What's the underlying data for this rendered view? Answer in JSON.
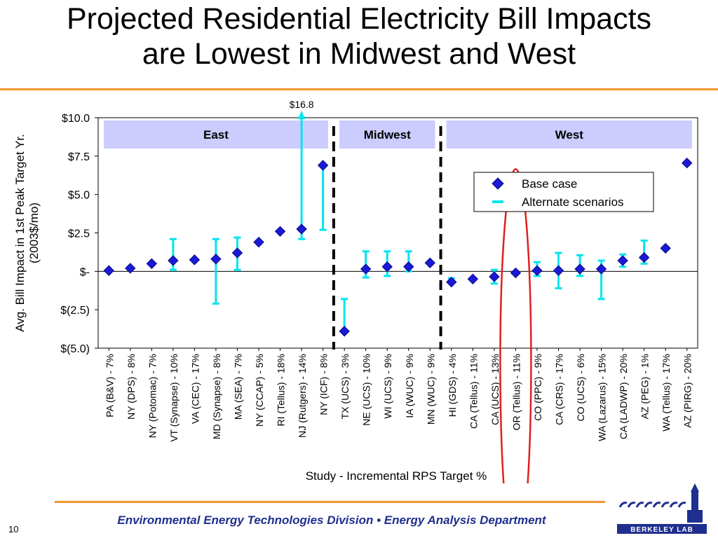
{
  "slide": {
    "title_line1": "Projected Residential Electricity Bill Impacts",
    "title_line2": "are Lowest in Midwest and West",
    "footer": "Environmental Energy Technologies Division  •  Energy Analysis Department",
    "page_number": "10",
    "logo_text": "BERKELEY LAB",
    "accent_color": "#f0962e",
    "footer_color": "#1f2f8f"
  },
  "chart_data": {
    "type": "scatter",
    "title": "",
    "xlabel": "Study - Incremental RPS Target %",
    "ylabel": "Avg. Bill Impact in 1st Peak Target Yr.\n(2003$/mo)",
    "ylim": [
      -5,
      10
    ],
    "yticks": [
      10,
      7.5,
      5,
      2.5,
      0,
      -2.5,
      -5
    ],
    "ytick_labels": [
      "$10.0",
      "$7.5",
      "$5.0",
      "$2.5",
      "$-",
      "$(2.5)",
      "$(5.0)"
    ],
    "categories": [
      "PA (B&V) - 7%",
      "NY (DPS) - 8%",
      "NY (Potomac) - 7%",
      "VT (Synapse) - 10%",
      "VA (CEC) - 17%",
      "MD (Synapse) - 8%",
      "MA (SEA) - 7%",
      "NY (CCAP) - 5%",
      "RI (Tellus) - 18%",
      "NJ (Rutgers) - 14%",
      "NY (ICF) - 8%",
      "TX (UCS) - 3%",
      "NE (UCS) - 10%",
      "WI (UCS) - 9%",
      "IA (WUC) - 9%",
      "MN (WUC) - 9%",
      "HI (GDS) - 4%",
      "CA (Tellus) - 11%",
      "CA (UCS) - 13%",
      "OR (Tellus) - 11%",
      "CO (PPC) - 9%",
      "CA (CRS) - 17%",
      "CO (UCS) - 6%",
      "WA (Lazarus) - 15%",
      "CA (LADWP) - 20%",
      "AZ (PEG) - 1%",
      "WA (Tellus) - 17%",
      "AZ (PIRG) - 20%"
    ],
    "series": [
      {
        "name": "Base case",
        "values": [
          0.05,
          0.2,
          0.5,
          0.7,
          0.75,
          0.8,
          1.2,
          1.9,
          2.6,
          2.75,
          6.9,
          -3.9,
          0.15,
          0.3,
          0.3,
          0.55,
          -0.7,
          -0.5,
          -0.35,
          -0.1,
          0.05,
          0.05,
          0.15,
          0.15,
          0.7,
          0.9,
          1.5,
          7.05
        ]
      },
      {
        "name": "Alternate scenarios",
        "ranges": [
          null,
          null,
          null,
          [
            0.1,
            2.1
          ],
          null,
          [
            -2.1,
            2.1
          ],
          [
            0.1,
            2.2
          ],
          null,
          null,
          [
            2.1,
            10.0
          ],
          [
            2.7,
            6.9
          ],
          [
            -3.9,
            -1.8
          ],
          [
            -0.4,
            1.3
          ],
          [
            -0.3,
            1.3
          ],
          [
            0.0,
            1.3
          ],
          null,
          [
            -0.7,
            -0.45
          ],
          null,
          [
            -0.8,
            0.1
          ],
          null,
          [
            -0.3,
            0.6
          ],
          [
            -1.1,
            1.2
          ],
          [
            -0.3,
            1.05
          ],
          [
            -1.8,
            0.7
          ],
          [
            0.3,
            1.1
          ],
          [
            0.5,
            2.0
          ],
          null,
          null
        ]
      }
    ],
    "overflow_label": "$16.8",
    "overflow_index": 9,
    "regions": [
      {
        "name": "East",
        "start": 0,
        "end": 10
      },
      {
        "name": "Midwest",
        "start": 11,
        "end": 15
      },
      {
        "name": "West",
        "start": 16,
        "end": 27
      }
    ],
    "highlight_index": 19,
    "legend_placement": "top-right",
    "colors": {
      "base_case": "#1a1ad6",
      "alternate": "#00e5ee",
      "region_band": "#ccccff",
      "highlight": "#e02020",
      "divider": "#000000"
    }
  }
}
